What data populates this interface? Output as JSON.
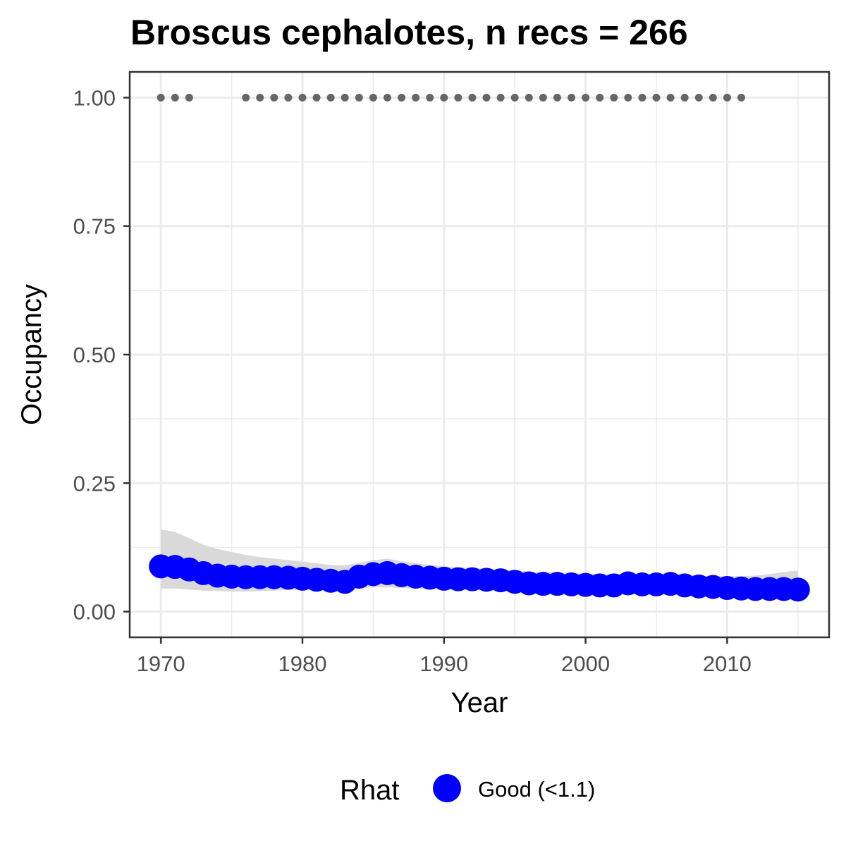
{
  "chart_data": {
    "type": "scatter",
    "title": "Broscus cephalotes, n recs = 266",
    "xlabel": "Year",
    "ylabel": "Occupancy",
    "xlim": [
      1967.8,
      2017.2
    ],
    "ylim": [
      -0.05,
      1.05
    ],
    "x_ticks": [
      1970,
      1980,
      1990,
      2000,
      2010
    ],
    "x_tick_labels": [
      "1970",
      "1980",
      "1990",
      "2000",
      "2010"
    ],
    "y_ticks": [
      0,
      0.25,
      0.5,
      0.75,
      1
    ],
    "y_tick_labels": [
      "0.00",
      "0.25",
      "0.50",
      "0.75",
      "1.00"
    ],
    "grid": true,
    "legend": {
      "placement": "bottom",
      "title": "Rhat",
      "entries": [
        {
          "label": "Good (<1.1)",
          "color": "#0000ff"
        }
      ]
    },
    "colors": {
      "points": "#0000ff",
      "ribbon": "#d9d9d9",
      "records": "#666666",
      "grid": "#ebebeb",
      "border": "#333333"
    },
    "series": [
      {
        "name": "Good (<1.1)",
        "x": [
          1970,
          1971,
          1972,
          1973,
          1974,
          1975,
          1976,
          1977,
          1978,
          1979,
          1980,
          1981,
          1982,
          1983,
          1984,
          1985,
          1986,
          1987,
          1988,
          1989,
          1990,
          1991,
          1992,
          1993,
          1994,
          1995,
          1996,
          1997,
          1998,
          1999,
          2000,
          2001,
          2002,
          2003,
          2004,
          2005,
          2006,
          2007,
          2008,
          2009,
          2010,
          2011,
          2012,
          2013,
          2014,
          2015
        ],
        "y": [
          0.088,
          0.087,
          0.082,
          0.075,
          0.07,
          0.068,
          0.067,
          0.067,
          0.067,
          0.066,
          0.064,
          0.062,
          0.06,
          0.058,
          0.068,
          0.073,
          0.075,
          0.071,
          0.068,
          0.066,
          0.064,
          0.063,
          0.063,
          0.062,
          0.061,
          0.058,
          0.055,
          0.054,
          0.054,
          0.053,
          0.052,
          0.051,
          0.051,
          0.055,
          0.053,
          0.053,
          0.054,
          0.051,
          0.049,
          0.048,
          0.046,
          0.045,
          0.044,
          0.044,
          0.044,
          0.043
        ],
        "lower": [
          0.045,
          0.045,
          0.043,
          0.041,
          0.04,
          0.039,
          0.039,
          0.04,
          0.041,
          0.042,
          0.043,
          0.043,
          0.043,
          0.044,
          0.046,
          0.047,
          0.047,
          0.046,
          0.045,
          0.044,
          0.043,
          0.042,
          0.042,
          0.041,
          0.04,
          0.039,
          0.038,
          0.037,
          0.037,
          0.036,
          0.036,
          0.035,
          0.035,
          0.035,
          0.035,
          0.034,
          0.034,
          0.033,
          0.032,
          0.031,
          0.03,
          0.029,
          0.028,
          0.027,
          0.026,
          0.025
        ],
        "upper": [
          0.16,
          0.155,
          0.143,
          0.13,
          0.122,
          0.116,
          0.11,
          0.106,
          0.103,
          0.1,
          0.097,
          0.094,
          0.091,
          0.09,
          0.095,
          0.1,
          0.103,
          0.098,
          0.094,
          0.091,
          0.088,
          0.086,
          0.085,
          0.083,
          0.082,
          0.08,
          0.078,
          0.077,
          0.076,
          0.075,
          0.074,
          0.073,
          0.072,
          0.074,
          0.073,
          0.072,
          0.072,
          0.071,
          0.07,
          0.069,
          0.069,
          0.069,
          0.07,
          0.073,
          0.077,
          0.08
        ]
      }
    ],
    "records": {
      "x": [
        1970,
        1971,
        1972,
        1976,
        1977,
        1978,
        1979,
        1980,
        1981,
        1982,
        1983,
        1984,
        1985,
        1986,
        1987,
        1988,
        1989,
        1990,
        1991,
        1992,
        1993,
        1994,
        1995,
        1996,
        1997,
        1998,
        1999,
        2000,
        2001,
        2002,
        2003,
        2004,
        2005,
        2006,
        2007,
        2008,
        2009,
        2010,
        2011
      ],
      "y": 1.0
    }
  }
}
